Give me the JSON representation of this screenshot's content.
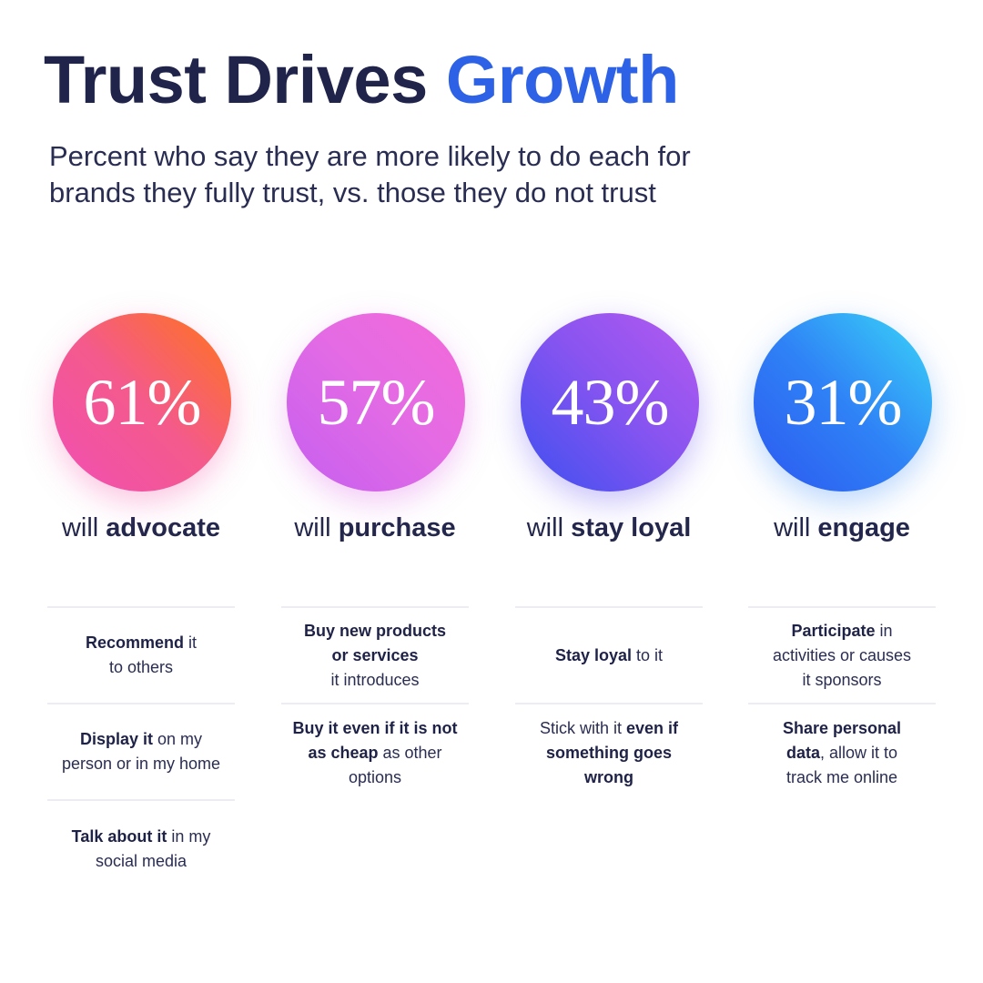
{
  "header": {
    "title_main": "Trust Drives ",
    "title_accent": "Growth",
    "subtitle": "Percent who say they are more likely to do each for brands they fully trust, vs. those they do not trust"
  },
  "colors": {
    "title": "#20244b",
    "accent": "#2d62e6",
    "circles": [
      "#f45a8c",
      "#e46be4",
      "#8a54f0",
      "#2f82f6"
    ]
  },
  "chart_data": {
    "type": "bar",
    "title": "Trust Drives Growth",
    "subtitle": "Percent who say they are more likely to do each for brands they fully trust, vs. those they do not trust",
    "categories": [
      "advocate",
      "purchase",
      "stay loyal",
      "engage"
    ],
    "values": [
      61,
      57,
      43,
      31
    ],
    "value_labels": [
      "61%",
      "57%",
      "43%",
      "31%"
    ],
    "columns": [
      {
        "value": 61,
        "pct_label": "61%",
        "label_prefix": "will ",
        "label_bold": "advocate",
        "items": [
          [
            {
              "t": "Recommend",
              "b": true
            },
            {
              "t": " it"
            },
            {
              "br": true
            },
            {
              "t": "to others"
            }
          ],
          [
            {
              "t": "Display it",
              "b": true
            },
            {
              "t": " on my"
            },
            {
              "br": true
            },
            {
              "t": "person or in my home"
            }
          ],
          [
            {
              "t": "Talk about it",
              "b": true
            },
            {
              "t": " in my"
            },
            {
              "br": true
            },
            {
              "t": "social media"
            }
          ]
        ]
      },
      {
        "value": 57,
        "pct_label": "57%",
        "label_prefix": "will ",
        "label_bold": "purchase",
        "items": [
          [
            {
              "t": "Buy new products",
              "b": true
            },
            {
              "br": true
            },
            {
              "t": "or services",
              "b": true
            },
            {
              "br": true
            },
            {
              "t": "it introduces"
            }
          ],
          [
            {
              "t": "Buy it even if it is not",
              "b": true
            },
            {
              "br": true
            },
            {
              "t": "as cheap",
              "b": true
            },
            {
              "t": " as other"
            },
            {
              "br": true
            },
            {
              "t": "options"
            }
          ]
        ]
      },
      {
        "value": 43,
        "pct_label": "43%",
        "label_prefix": "will ",
        "label_bold": "stay loyal",
        "items": [
          [
            {
              "t": "Stay loyal",
              "b": true
            },
            {
              "t": " to it"
            }
          ],
          [
            {
              "t": "Stick with it "
            },
            {
              "t": "even if",
              "b": true
            },
            {
              "br": true
            },
            {
              "t": "something goes",
              "b": true
            },
            {
              "br": true
            },
            {
              "t": "wrong",
              "b": true
            }
          ]
        ]
      },
      {
        "value": 31,
        "pct_label": "31%",
        "label_prefix": "will ",
        "label_bold": "engage",
        "items": [
          [
            {
              "t": "Participate",
              "b": true
            },
            {
              "t": " in"
            },
            {
              "br": true
            },
            {
              "t": "activities or causes"
            },
            {
              "br": true
            },
            {
              "t": "it sponsors"
            }
          ],
          [
            {
              "t": "Share personal",
              "b": true
            },
            {
              "br": true
            },
            {
              "t": "data",
              "b": true
            },
            {
              "t": ", allow it to"
            },
            {
              "br": true
            },
            {
              "t": "track me online"
            }
          ]
        ]
      }
    ]
  }
}
